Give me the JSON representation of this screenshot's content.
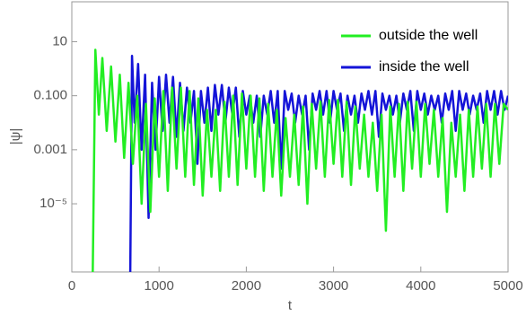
{
  "chart_data": {
    "type": "line",
    "xlabel": "t",
    "ylabel": "|ψ|",
    "xlim": [
      0,
      5000
    ],
    "xticks": [
      0,
      1000,
      2000,
      3000,
      4000,
      5000
    ],
    "ylim": [
      3e-08,
      300
    ],
    "ylog": true,
    "yticks": [
      10,
      {
        "value": 0.1,
        "label": "0.100"
      },
      0.001,
      {
        "value": 1e-05,
        "label": "10⁻⁵"
      }
    ],
    "legend": "top right",
    "series": [
      {
        "name": "inside the well",
        "color": "#1414d8",
        "x": [
          670,
          690,
          720,
          760,
          800,
          840,
          880,
          920,
          960,
          1000,
          1040,
          1080,
          1120,
          1160,
          1200,
          1240,
          1280,
          1320,
          1360,
          1400,
          1440,
          1480,
          1520,
          1560,
          1600,
          1640,
          1680,
          1720,
          1760,
          1800,
          1840,
          1880,
          1920,
          1960,
          2000,
          2040,
          2080,
          2120,
          2160,
          2200,
          2240,
          2280,
          2320,
          2360,
          2400,
          2440,
          2480,
          2520,
          2560,
          2600,
          2640,
          2680,
          2720,
          2760,
          2800,
          2840,
          2880,
          2920,
          2960,
          3000,
          3040,
          3080,
          3120,
          3160,
          3200,
          3240,
          3280,
          3320,
          3360,
          3400,
          3440,
          3480,
          3520,
          3560,
          3600,
          3640,
          3680,
          3720,
          3760,
          3800,
          3840,
          3880,
          3920,
          3960,
          4000,
          4040,
          4080,
          4120,
          4160,
          4200,
          4240,
          4280,
          4320,
          4360,
          4400,
          4440,
          4480,
          4520,
          4560,
          4600,
          4640,
          4680,
          4720,
          4760,
          4800,
          4840,
          4880,
          4920,
          4960,
          5000
        ],
        "values": [
          3e-08,
          3,
          0.01,
          1.5,
          0.001,
          0.6,
          3e-06,
          0.3,
          0.001,
          0.5,
          0.005,
          0.6,
          0.01,
          0.5,
          0.003,
          0.3,
          0.005,
          0.2,
          0.01,
          0.15,
          0.0003,
          0.15,
          0.01,
          0.2,
          0.005,
          0.25,
          0.02,
          0.25,
          0.01,
          0.2,
          0.02,
          0.2,
          0.003,
          0.15,
          0.02,
          0.1,
          0.01,
          0.1,
          0.003,
          0.1,
          0.02,
          0.15,
          0.01,
          0.15,
          0.0002,
          0.15,
          0.03,
          0.12,
          0.01,
          0.1,
          0.02,
          0.1,
          0.001,
          0.12,
          0.03,
          0.15,
          0.02,
          0.15,
          0.01,
          0.15,
          0.03,
          0.12,
          0.005,
          0.1,
          0.02,
          0.1,
          0.01,
          0.12,
          0.03,
          0.15,
          0.02,
          0.15,
          0.003,
          0.12,
          0.03,
          0.1,
          0.02,
          0.1,
          0.01,
          0.12,
          0.03,
          0.15,
          0.005,
          0.15,
          0.03,
          0.12,
          0.02,
          0.1,
          0.03,
          0.1,
          0.01,
          0.12,
          0.03,
          0.15,
          0.005,
          0.15,
          0.03,
          0.12,
          0.02,
          0.1,
          0.03,
          0.12,
          0.01,
          0.15,
          0.03,
          0.15,
          0.02,
          0.15,
          0.03,
          0.1
        ]
      },
      {
        "name": "outside the well",
        "color": "#22ee22",
        "x": [
          240,
          270,
          310,
          350,
          400,
          450,
          500,
          550,
          600,
          650,
          700,
          750,
          800,
          850,
          900,
          950,
          1000,
          1050,
          1100,
          1150,
          1200,
          1250,
          1300,
          1350,
          1400,
          1450,
          1500,
          1550,
          1600,
          1650,
          1700,
          1750,
          1800,
          1850,
          1900,
          1950,
          2000,
          2050,
          2100,
          2150,
          2200,
          2250,
          2300,
          2350,
          2400,
          2450,
          2500,
          2550,
          2600,
          2650,
          2700,
          2750,
          2800,
          2850,
          2900,
          2950,
          3000,
          3050,
          3100,
          3150,
          3200,
          3250,
          3300,
          3350,
          3400,
          3450,
          3500,
          3550,
          3600,
          3650,
          3700,
          3750,
          3800,
          3850,
          3900,
          3950,
          4000,
          4050,
          4100,
          4150,
          4200,
          4250,
          4300,
          4350,
          4400,
          4450,
          4500,
          4550,
          4600,
          4650,
          4700,
          4750,
          4800,
          4850,
          4900,
          4950,
          5000
        ],
        "values": [
          3e-08,
          5,
          0.02,
          2.5,
          0.005,
          1.2,
          0.002,
          0.6,
          0.0005,
          0.3,
          0.0003,
          0.1,
          1e-05,
          0.05,
          5e-06,
          0.08,
          0.0001,
          0.15,
          3e-05,
          0.2,
          0.0002,
          0.2,
          0.0001,
          0.15,
          5e-05,
          0.08,
          2e-05,
          0.03,
          0.0001,
          0.03,
          3e-05,
          0.06,
          0.0001,
          0.1,
          5e-05,
          0.12,
          0.0002,
          0.1,
          0.0001,
          0.08,
          3e-05,
          0.05,
          0.0001,
          0.03,
          2e-05,
          0.015,
          0.0001,
          0.02,
          5e-05,
          0.04,
          1e-05,
          0.05,
          0.0002,
          0.06,
          0.0001,
          0.07,
          0.0003,
          0.07,
          0.0001,
          0.06,
          5e-05,
          0.04,
          0.0002,
          0.02,
          0.0001,
          0.01,
          3e-05,
          0.02,
          1e-06,
          0.04,
          0.0001,
          0.05,
          3e-05,
          0.06,
          0.0002,
          0.06,
          0.0001,
          0.05,
          0.0003,
          0.03,
          0.0001,
          0.015,
          5e-06,
          0.01,
          0.0001,
          0.02,
          3e-05,
          0.03,
          0.0001,
          0.04,
          0.0002,
          0.05,
          0.0001,
          0.05,
          0.0003,
          0.05,
          0.03
        ]
      }
    ]
  }
}
